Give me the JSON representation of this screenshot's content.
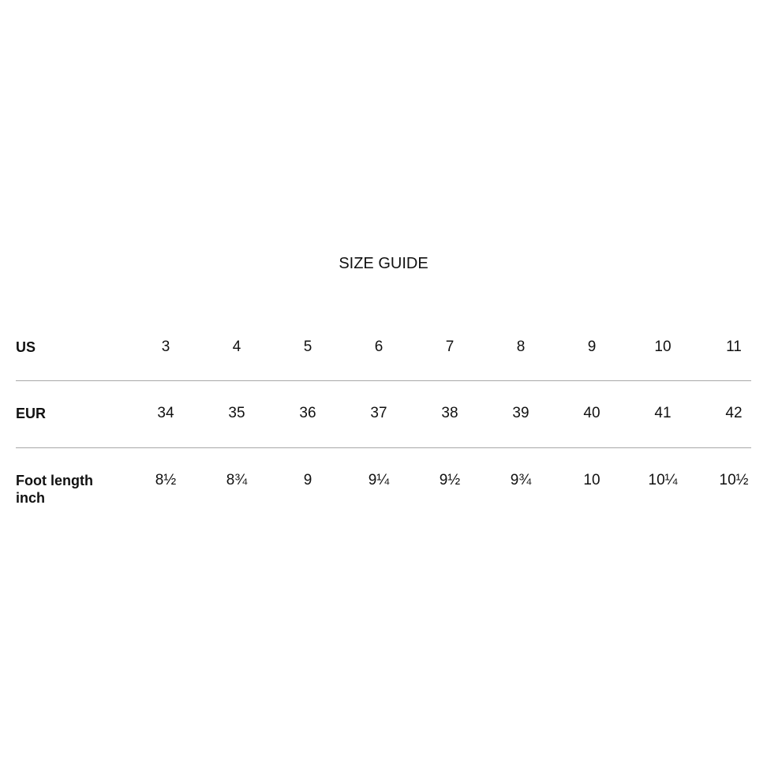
{
  "title": "SIZE GUIDE",
  "rows": [
    {
      "label": "US",
      "values": [
        "3",
        "4",
        "5",
        "6",
        "7",
        "8",
        "9",
        "10",
        "11"
      ]
    },
    {
      "label": "EUR",
      "values": [
        "34",
        "35",
        "36",
        "37",
        "38",
        "39",
        "40",
        "41",
        "42"
      ]
    },
    {
      "label": "Foot length\ninch",
      "values": [
        "8½",
        "8¾",
        "9",
        "9¼",
        "9½",
        "9¾",
        "10",
        "10¼",
        "10½"
      ]
    }
  ]
}
